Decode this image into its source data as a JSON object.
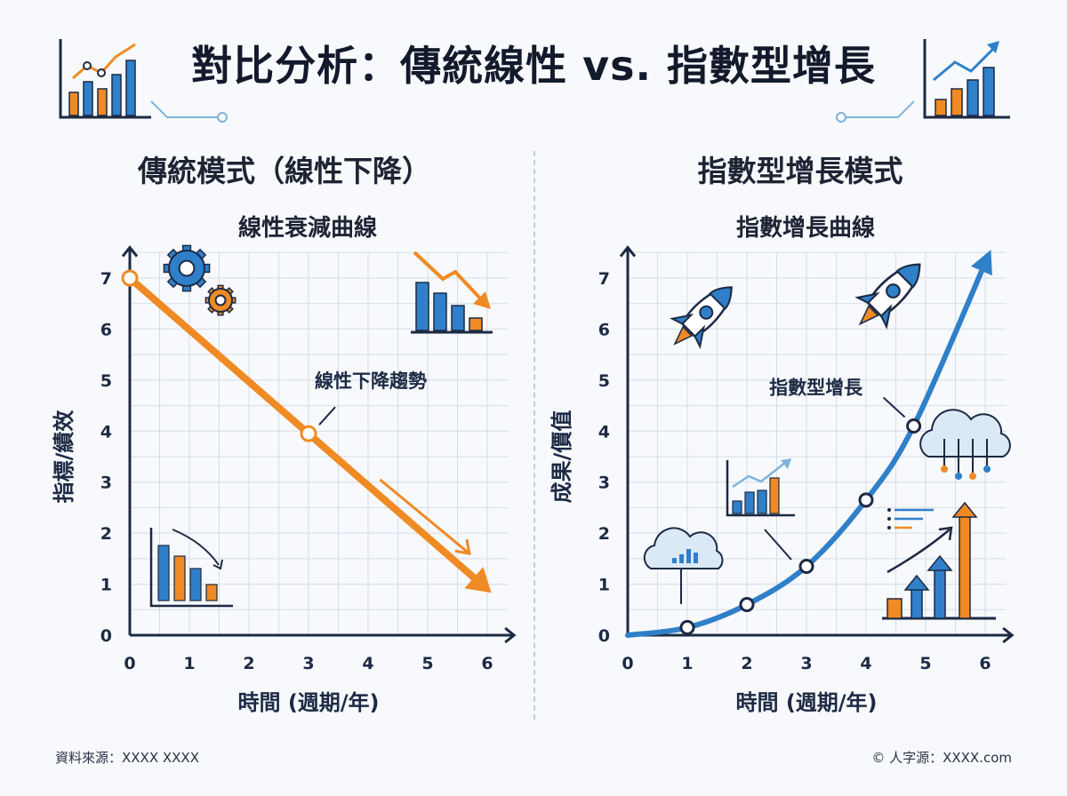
{
  "title": "對比分析：傳統線性 vs. 指數型增長",
  "footer": {
    "source": "資料來源：XXXX XXXX",
    "credit": "© 人字源：XXXX.com"
  },
  "colors": {
    "linear": "#f08a24",
    "exponential": "#2f80c9",
    "grid": "#d6dde8",
    "axis": "#1d2a44"
  },
  "panels": {
    "left": {
      "heading": "傳統模式（線性下降）",
      "icons": [
        "gears-icon",
        "declining-bar-chart-icon",
        "small-declining-bar-chart-icon"
      ]
    },
    "right": {
      "heading": "指數型增長模式",
      "icons": [
        "rocket-icon",
        "rocket-icon",
        "cloud-chart-icon",
        "growth-bar-chart-icon",
        "cloud-network-icon",
        "growth-arrows-chart-icon"
      ]
    }
  },
  "chart_data": [
    {
      "type": "line",
      "title": "線性衰減曲線",
      "xlabel": "時間 (週期/年)",
      "ylabel": "指標/績效",
      "xlim": [
        0,
        6
      ],
      "ylim": [
        0,
        7
      ],
      "xticks": [
        "0",
        "1",
        "2",
        "3",
        "4",
        "5",
        "6"
      ],
      "yticks": [
        "0",
        "1",
        "2",
        "3",
        "4",
        "5",
        "6",
        "7"
      ],
      "grid": true,
      "series": [
        {
          "x": [
            0,
            3,
            6
          ],
          "y": [
            7,
            3.95,
            0.9
          ],
          "markers": [
            0,
            3
          ]
        }
      ],
      "annotations": [
        {
          "text": "線性下降趨勢",
          "x": 3,
          "y": 3.95
        }
      ]
    },
    {
      "type": "line",
      "title": "指數增長曲線",
      "xlabel": "時間 (週期/年)",
      "ylabel": "成果/價值",
      "xlim": [
        0,
        6
      ],
      "ylim": [
        0,
        7
      ],
      "xticks": [
        "0",
        "1",
        "2",
        "3",
        "4",
        "5",
        "6"
      ],
      "yticks": [
        "0",
        "1",
        "2",
        "3",
        "4",
        "5",
        "6",
        "7"
      ],
      "grid": true,
      "series": [
        {
          "x": [
            0,
            1,
            2,
            3,
            4,
            4.8,
            6
          ],
          "y": [
            0,
            0.15,
            0.6,
            1.35,
            2.65,
            4.1,
            7.3
          ],
          "markers": [
            1,
            2,
            3,
            4,
            4.8
          ]
        }
      ],
      "annotations": [
        {
          "text": "指數型增長",
          "x": 4.8,
          "y": 4.1
        }
      ]
    }
  ]
}
